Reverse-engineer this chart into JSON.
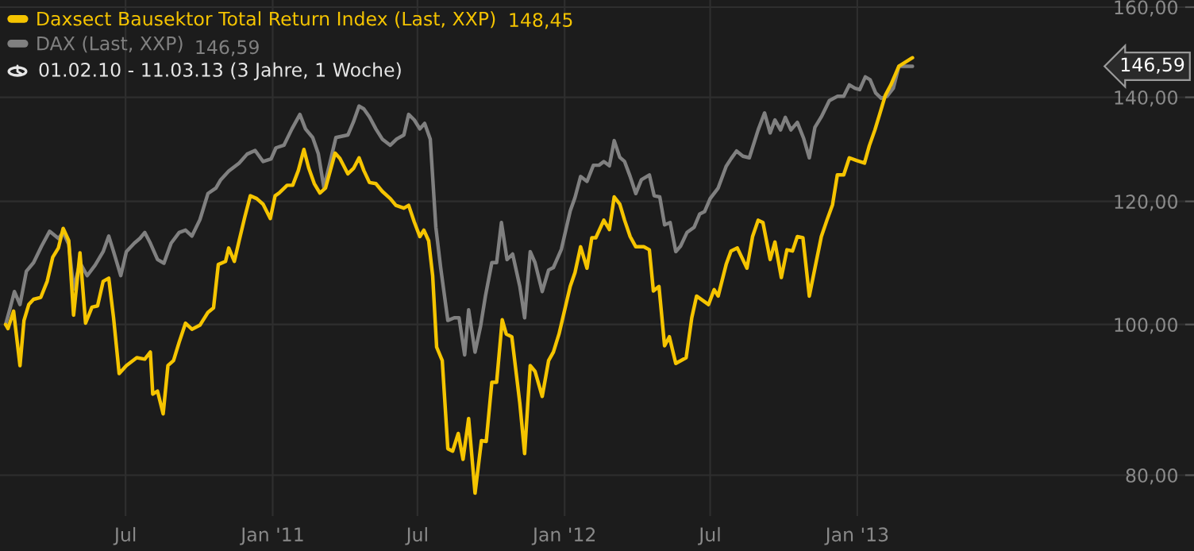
{
  "chart_data": {
    "type": "line",
    "subtitle": "01.02.10 - 11.03.13 (3 Jahre, 1 Woche)",
    "log": true,
    "grid": true,
    "legend": "top left",
    "line_style": "solid",
    "xlim": [
      "2010-01-25",
      "2014-02-26"
    ],
    "xticks": [
      {
        "value": "2010-07-01",
        "label": "Jul"
      },
      {
        "value": "2011-01-01",
        "label": "Jan '11"
      },
      {
        "value": "2011-07-01",
        "label": "Jul"
      },
      {
        "value": "2012-01-01",
        "label": "Jan '12"
      },
      {
        "value": "2012-07-01",
        "label": "Jul"
      },
      {
        "value": "2013-01-01",
        "label": "Jan '13"
      }
    ],
    "ylim": [
      75.3,
      161.7
    ],
    "yticks": [
      {
        "value": 80,
        "label": "80,00"
      },
      {
        "value": 100,
        "label": "100,00"
      },
      {
        "value": 120,
        "label": "120,00"
      },
      {
        "value": 140,
        "label": "140,00"
      },
      {
        "value": 160,
        "label": "160,00"
      }
    ],
    "annotations": [
      "146,59",
      "148,45",
      "146,59"
    ],
    "series": [
      {
        "name": "DAX (Last, XXP)",
        "color": "#808080",
        "x": [
          "2010-02-01",
          "2010-02-07",
          "2010-02-12",
          "2010-02-19",
          "2010-02-27",
          "2010-03-08",
          "2010-03-18",
          "2010-03-28",
          "2010-04-08",
          "2010-04-14",
          "2010-04-21",
          "2010-04-27",
          "2010-05-05",
          "2010-05-14",
          "2010-05-24",
          "2010-06-03",
          "2010-06-10",
          "2010-06-16",
          "2010-06-25",
          "2010-07-02",
          "2010-07-12",
          "2010-07-19",
          "2010-07-25",
          "2010-08-01",
          "2010-08-10",
          "2010-08-18",
          "2010-08-27",
          "2010-09-06",
          "2010-09-14",
          "2010-09-22",
          "2010-10-02",
          "2010-10-12",
          "2010-10-22",
          "2010-10-28",
          "2010-11-07",
          "2010-11-20",
          "2010-11-30",
          "2010-12-10",
          "2010-12-20",
          "2010-12-30",
          "2011-01-05",
          "2011-01-15",
          "2011-01-25",
          "2011-02-04",
          "2011-02-11",
          "2011-02-20",
          "2011-02-27",
          "2011-03-06",
          "2011-03-13",
          "2011-03-21",
          "2011-04-05",
          "2011-04-12",
          "2011-04-19",
          "2011-04-25",
          "2011-05-02",
          "2011-05-10",
          "2011-05-18",
          "2011-05-28",
          "2011-06-05",
          "2011-06-14",
          "2011-06-20",
          "2011-06-27",
          "2011-07-04",
          "2011-07-10",
          "2011-07-17",
          "2011-07-24",
          "2011-07-30",
          "2011-08-08",
          "2011-08-16",
          "2011-08-22",
          "2011-08-29",
          "2011-09-03",
          "2011-09-11",
          "2011-09-18",
          "2011-09-24",
          "2011-10-02",
          "2011-10-08",
          "2011-10-14",
          "2011-10-21",
          "2011-10-28",
          "2011-11-06",
          "2011-11-12",
          "2011-11-19",
          "2011-11-25",
          "2011-12-04",
          "2011-12-12",
          "2011-12-18",
          "2011-12-28",
          "2012-01-08",
          "2012-01-14",
          "2012-01-21",
          "2012-01-29",
          "2012-02-06",
          "2012-02-13",
          "2012-02-19",
          "2012-02-26",
          "2012-03-03",
          "2012-03-10",
          "2012-03-16",
          "2012-03-23",
          "2012-03-30",
          "2012-04-06",
          "2012-04-16",
          "2012-04-22",
          "2012-04-29",
          "2012-05-05",
          "2012-05-12",
          "2012-05-19",
          "2012-05-25",
          "2012-06-02",
          "2012-06-11",
          "2012-06-18",
          "2012-06-24",
          "2012-07-01",
          "2012-07-11",
          "2012-07-21",
          "2012-07-27",
          "2012-08-03",
          "2012-08-11",
          "2012-08-19",
          "2012-08-30",
          "2012-09-07",
          "2012-09-14",
          "2012-09-20",
          "2012-09-27",
          "2012-10-03",
          "2012-10-10",
          "2012-10-18",
          "2012-10-26",
          "2012-11-02",
          "2012-11-09",
          "2012-11-17",
          "2012-11-27",
          "2012-12-07",
          "2012-12-15",
          "2012-12-22",
          "2012-12-29",
          "2013-01-04",
          "2013-01-11",
          "2013-01-17",
          "2013-01-24",
          "2013-01-31",
          "2013-02-07",
          "2013-02-15",
          "2013-02-22",
          "2013-03-11"
        ],
        "values": [
          100,
          102.6,
          105.0,
          103.0,
          108.2,
          109.6,
          112.3,
          114.8,
          113.6,
          114.6,
          112.6,
          105.4,
          109.6,
          107.5,
          109.2,
          111.4,
          114.0,
          111.4,
          107.5,
          111.4,
          112.8,
          113.6,
          114.6,
          112.8,
          110.1,
          109.5,
          112.8,
          114.6,
          115.0,
          114.0,
          116.8,
          121.4,
          122.4,
          123.9,
          125.5,
          127.0,
          128.7,
          129.4,
          127.3,
          127.8,
          129.9,
          130.4,
          133.6,
          136.5,
          133.6,
          131.9,
          128.8,
          122.5,
          126.7,
          131.9,
          132.4,
          135.0,
          138.2,
          137.6,
          136.0,
          133.6,
          131.6,
          130.4,
          131.6,
          132.4,
          136.5,
          135.4,
          133.6,
          134.7,
          131.6,
          115.5,
          108.8,
          100.6,
          101.0,
          101.0,
          95.6,
          102.2,
          96.0,
          99.8,
          104.3,
          109.6,
          109.6,
          116.3,
          110.1,
          111.0,
          105.8,
          101.0,
          111.4,
          109.6,
          105.0,
          108.4,
          108.8,
          111.8,
          118.3,
          120.7,
          124.5,
          123.6,
          126.6,
          126.6,
          127.3,
          126.5,
          131.3,
          128.1,
          127.3,
          124.5,
          121.4,
          123.9,
          124.8,
          121.0,
          120.8,
          115.9,
          116.3,
          111.4,
          112.3,
          114.6,
          115.5,
          117.8,
          118.2,
          120.5,
          122.4,
          126.4,
          127.8,
          129.3,
          128.3,
          128.0,
          133.4,
          136.8,
          132.8,
          135.4,
          133.4,
          135.9,
          133.4,
          134.9,
          131.7,
          128.0,
          133.9,
          136.0,
          139.3,
          140.2,
          140.2,
          142.6,
          141.9,
          141.6,
          144.3,
          143.7,
          140.9,
          139.8,
          140.2,
          141.9,
          146.6,
          146.59
        ]
      },
      {
        "name": "Daxsect Bausektor Total Return Index (Last, XXP)",
        "color": "#f5c400",
        "x": [
          "2010-02-01",
          "2010-02-04",
          "2010-02-11",
          "2010-02-19",
          "2010-02-24",
          "2010-03-02",
          "2010-03-08",
          "2010-03-17",
          "2010-03-25",
          "2010-04-01",
          "2010-04-08",
          "2010-04-14",
          "2010-04-21",
          "2010-04-27",
          "2010-05-05",
          "2010-05-12",
          "2010-05-20",
          "2010-05-27",
          "2010-06-03",
          "2010-06-10",
          "2010-06-16",
          "2010-06-23",
          "2010-07-02",
          "2010-07-15",
          "2010-07-25",
          "2010-08-01",
          "2010-08-04",
          "2010-08-10",
          "2010-08-17",
          "2010-08-23",
          "2010-08-30",
          "2010-09-06",
          "2010-09-14",
          "2010-09-22",
          "2010-10-02",
          "2010-10-12",
          "2010-10-19",
          "2010-10-25",
          "2010-11-03",
          "2010-11-07",
          "2010-11-14",
          "2010-11-20",
          "2010-11-27",
          "2010-12-04",
          "2010-12-12",
          "2010-12-20",
          "2010-12-29",
          "2011-01-04",
          "2011-01-09",
          "2011-01-19",
          "2011-01-26",
          "2011-02-02",
          "2011-02-09",
          "2011-02-15",
          "2011-02-22",
          "2011-03-01",
          "2011-03-08",
          "2011-03-20",
          "2011-03-26",
          "2011-04-05",
          "2011-04-12",
          "2011-04-19",
          "2011-04-25",
          "2011-05-02",
          "2011-05-10",
          "2011-05-18",
          "2011-05-28",
          "2011-06-04",
          "2011-06-14",
          "2011-06-20",
          "2011-06-27",
          "2011-07-04",
          "2011-07-09",
          "2011-07-15",
          "2011-07-20",
          "2011-07-25",
          "2011-08-01",
          "2011-08-08",
          "2011-08-14",
          "2011-08-21",
          "2011-08-27",
          "2011-09-03",
          "2011-09-11",
          "2011-09-19",
          "2011-09-25",
          "2011-10-02",
          "2011-10-08",
          "2011-10-15",
          "2011-10-20",
          "2011-10-27",
          "2011-11-06",
          "2011-11-12",
          "2011-11-19",
          "2011-11-25",
          "2011-12-04",
          "2011-12-12",
          "2011-12-18",
          "2011-12-25",
          "2012-01-08",
          "2012-01-14",
          "2012-01-21",
          "2012-01-29",
          "2012-02-04",
          "2012-02-09",
          "2012-02-19",
          "2012-02-26",
          "2012-03-03",
          "2012-03-10",
          "2012-03-16",
          "2012-03-23",
          "2012-03-30",
          "2012-04-09",
          "2012-04-16",
          "2012-04-21",
          "2012-04-28",
          "2012-05-05",
          "2012-05-11",
          "2012-05-19",
          "2012-06-01",
          "2012-06-08",
          "2012-06-14",
          "2012-06-29",
          "2012-07-06",
          "2012-07-11",
          "2012-07-21",
          "2012-07-27",
          "2012-08-04",
          "2012-08-16",
          "2012-08-23",
          "2012-08-30",
          "2012-09-05",
          "2012-09-14",
          "2012-09-20",
          "2012-09-28",
          "2012-10-05",
          "2012-10-12",
          "2012-10-18",
          "2012-10-25",
          "2012-11-02",
          "2012-11-09",
          "2012-11-17",
          "2012-11-24",
          "2012-12-01",
          "2012-12-07",
          "2012-12-15",
          "2012-12-22",
          "2012-12-31",
          "2013-01-10",
          "2013-01-16",
          "2013-01-23",
          "2013-01-30",
          "2013-02-05",
          "2013-02-12",
          "2013-02-22",
          "2013-03-11"
        ],
        "values": [
          100,
          99.4,
          102.0,
          94.1,
          100.6,
          103.0,
          103.8,
          104.1,
          106.6,
          110.5,
          112.0,
          115.3,
          113.2,
          101.4,
          111.2,
          100.2,
          102.6,
          102.8,
          106.6,
          107.1,
          101.0,
          93.0,
          94.1,
          95.2,
          95.0,
          96.0,
          90.2,
          90.6,
          87.6,
          94.1,
          94.8,
          97.4,
          100.2,
          99.3,
          99.9,
          101.8,
          102.5,
          109.3,
          109.8,
          112.0,
          109.8,
          113.2,
          117.2,
          121.0,
          120.5,
          119.5,
          117.0,
          121.0,
          121.5,
          122.9,
          122.9,
          125.6,
          129.6,
          126.1,
          123.2,
          121.5,
          122.4,
          128.9,
          127.9,
          125.0,
          126.0,
          128.0,
          125.6,
          123.4,
          123.2,
          121.8,
          120.5,
          119.3,
          118.8,
          119.3,
          116.4,
          113.9,
          115.0,
          113.2,
          107.5,
          96.7,
          94.8,
          83.2,
          82.9,
          85.1,
          81.9,
          87.0,
          77.9,
          84.2,
          84.1,
          91.8,
          91.8,
          100.7,
          98.6,
          98.2,
          89.0,
          82.6,
          94.1,
          93.3,
          89.9,
          94.8,
          96.0,
          98.6,
          105.8,
          108.0,
          112.2,
          108.7,
          113.7,
          113.7,
          116.7,
          115.1,
          120.8,
          119.5,
          116.7,
          113.9,
          112.2,
          112.2,
          111.7,
          105.1,
          105.8,
          96.9,
          98.2,
          94.4,
          95.2,
          101.0,
          104.3,
          103.0,
          105.3,
          104.3,
          109.3,
          111.5,
          112.0,
          108.7,
          113.9,
          116.7,
          116.3,
          110.1,
          113.0,
          107.2,
          111.7,
          111.5,
          113.9,
          113.7,
          104.3,
          108.7,
          113.9,
          116.7,
          119.4,
          124.8,
          124.8,
          128.0,
          127.5,
          127.0,
          130.3,
          133.4,
          137.1,
          140.4,
          142.6,
          146.6,
          148.45
        ]
      }
    ]
  }
}
